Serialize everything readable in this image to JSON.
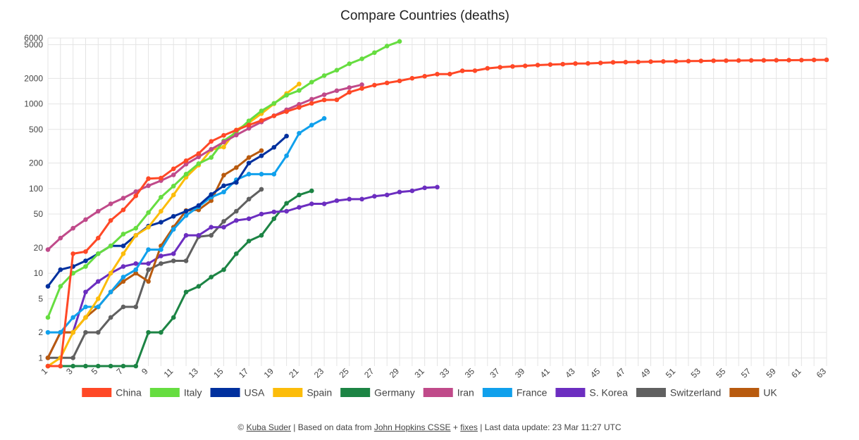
{
  "chart_data": {
    "type": "line",
    "title": "Compare Countries (deaths)",
    "y_scale": "log",
    "ylim": [
      0.8,
      6000
    ],
    "xlim": [
      1,
      63
    ],
    "y_ticks": [
      1,
      2,
      5,
      10,
      20,
      50,
      100,
      200,
      500,
      1000,
      2000,
      5000,
      6000
    ],
    "x_ticks": [
      1,
      3,
      5,
      7,
      9,
      11,
      13,
      15,
      17,
      19,
      21,
      23,
      25,
      27,
      29,
      31,
      33,
      35,
      37,
      39,
      41,
      43,
      45,
      47,
      49,
      51,
      53,
      55,
      57,
      59,
      61,
      63
    ],
    "grid": true,
    "legend_position": "bottom",
    "series": [
      {
        "name": "China",
        "color": "#ff4826",
        "values": [
          0.8,
          0.8,
          17,
          18,
          26,
          42,
          56,
          82,
          131,
          133,
          171,
          213,
          259,
          361,
          425,
          490,
          563,
          637,
          722,
          811,
          908,
          1016,
          1113,
          1118,
          1371,
          1523,
          1666,
          1770,
          1868,
          2007,
          2122,
          2247,
          2251,
          2458,
          2469,
          2629,
          2708,
          2770,
          2814,
          2872,
          2914,
          2947,
          2996,
          3008,
          3048,
          3095,
          3112,
          3127,
          3156,
          3169,
          3185,
          3202,
          3216,
          3235,
          3244,
          3254,
          3263,
          3268,
          3278,
          3284,
          3291,
          3305,
          3315
        ]
      },
      {
        "name": "Italy",
        "color": "#66dd40",
        "values": [
          3,
          7,
          10,
          12,
          17,
          21,
          29,
          34,
          52,
          79,
          107,
          148,
          197,
          233,
          366,
          463,
          631,
          827,
          1016,
          1266,
          1441,
          1809,
          2158,
          2503,
          2978,
          3405,
          4032,
          4825,
          5476
        ]
      },
      {
        "name": "USA",
        "color": "#00309e",
        "values": [
          7,
          11,
          12,
          14,
          17,
          21,
          21,
          28,
          36,
          40,
          47,
          54,
          63,
          85,
          108,
          118,
          200,
          244,
          307,
          417
        ]
      },
      {
        "name": "Spain",
        "color": "#fcbc0a",
        "values": [
          0.8,
          1,
          2,
          3,
          5,
          10,
          17,
          28,
          35,
          54,
          84,
          136,
          189,
          288,
          309,
          491,
          598,
          767,
          1002,
          1326,
          1720
        ]
      },
      {
        "name": "Germany",
        "color": "#1c8444",
        "values": [
          0.8,
          0.8,
          0.8,
          0.8,
          0.8,
          0.8,
          0.8,
          0.8,
          2,
          2,
          3,
          6,
          7,
          9,
          11,
          17,
          24,
          28,
          44,
          67,
          84,
          94
        ]
      },
      {
        "name": "Iran",
        "color": "#c04a8a",
        "values": [
          19,
          26,
          34,
          43,
          54,
          66,
          77,
          92,
          108,
          124,
          145,
          194,
          237,
          291,
          354,
          429,
          514,
          611,
          724,
          853,
          988,
          1135,
          1284,
          1433,
          1556,
          1685
        ]
      },
      {
        "name": "France",
        "color": "#10a0ec",
        "values": [
          2,
          2,
          3,
          4,
          4,
          6,
          9,
          11,
          19,
          19,
          33,
          48,
          61,
          79,
          91,
          127,
          148,
          148,
          148,
          244,
          450,
          562,
          674
        ]
      },
      {
        "name": "S. Korea",
        "color": "#6c2ec0",
        "values": [
          1,
          2,
          2,
          6,
          8,
          10,
          12,
          13,
          13,
          16,
          17,
          28,
          28,
          35,
          35,
          42,
          44,
          50,
          53,
          54,
          60,
          66,
          66,
          72,
          75,
          75,
          81,
          84,
          91,
          94,
          102,
          104
        ]
      },
      {
        "name": "Switzerland",
        "color": "#606060",
        "values": [
          1,
          1,
          1,
          2,
          2,
          3,
          4,
          4,
          11,
          13,
          14,
          14,
          27,
          28,
          41,
          54,
          75,
          98
        ]
      },
      {
        "name": "UK",
        "color": "#b85a0e",
        "values": [
          1,
          2,
          2,
          3,
          4,
          6,
          8,
          10,
          8,
          21,
          35,
          55,
          56,
          72,
          144,
          177,
          233,
          281
        ]
      }
    ]
  },
  "footer": {
    "copyright": "© ",
    "author": "Kuba Suder",
    "sep1": " | Based on data from ",
    "source": "John Hopkins CSSE",
    "plus": " + ",
    "fixes": "fixes",
    "update": " | Last data update: 23 Mar 11:27 UTC"
  }
}
